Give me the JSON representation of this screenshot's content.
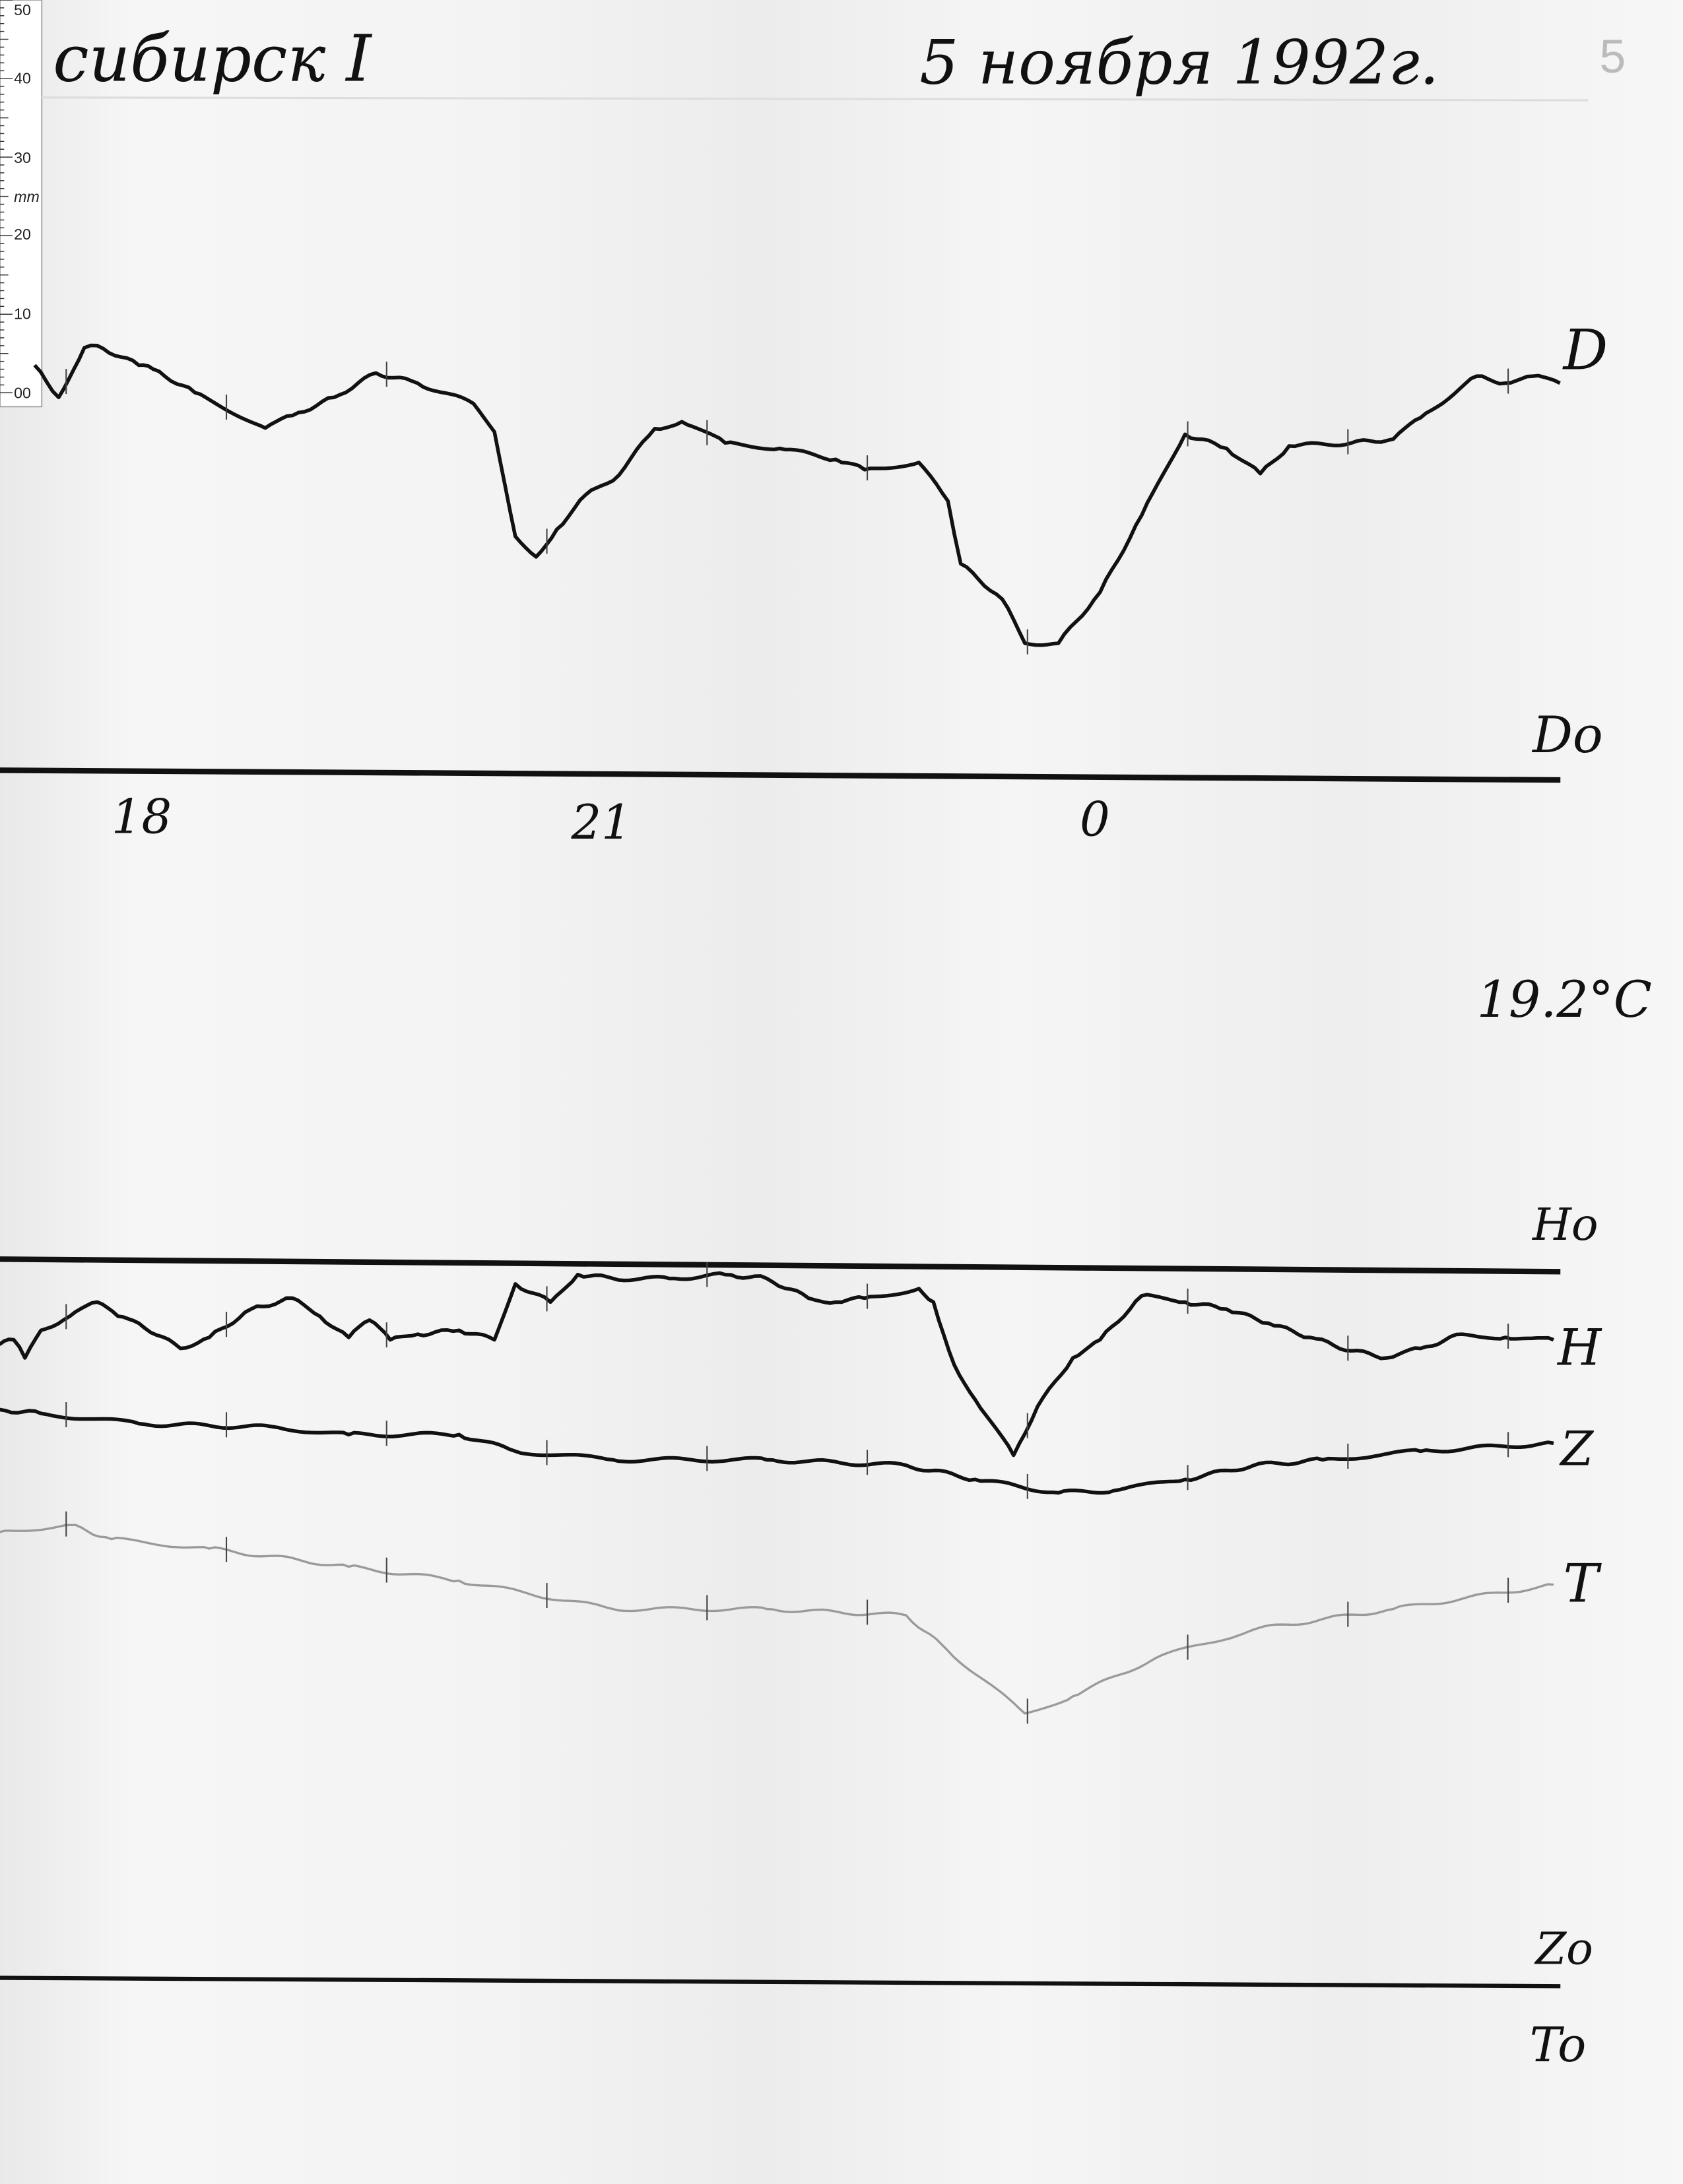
{
  "header": {
    "station": "сибирск I",
    "date": "5 ноября 1992г.",
    "page_number": "5"
  },
  "ruler": {
    "unit": "mm",
    "labels": [
      "50",
      "40",
      "30",
      "20",
      "10",
      "00"
    ]
  },
  "labels": {
    "D": "D",
    "D0": "Do",
    "temperature": "19.2°C",
    "H0": "Ho",
    "H": "H",
    "Z": "Z",
    "T": "T",
    "Z0": "Zo",
    "T0": "To"
  },
  "chart_data": {
    "type": "line",
    "title": "",
    "xlabel": "",
    "ylabel": "",
    "x_tick_labels": [
      "18",
      "21",
      "0"
    ],
    "x_unit": "hours (local time, wraps past midnight)",
    "y_unit": "mm deflection from own baseline",
    "grid": false,
    "colors": {
      "D": "#111111",
      "H": "#111111",
      "Z": "#111111",
      "T": "#9a9a9a"
    },
    "series": [
      {
        "name": "D",
        "baseline": "Do",
        "t": [
          17.39,
          17.54,
          17.7,
          17.78,
          18.04,
          18.13,
          18.39,
          18.83,
          19.0,
          19.26,
          19.52,
          19.78,
          20.13,
          20.26,
          20.39,
          20.52,
          20.65,
          20.83,
          21.0,
          21.26,
          21.43,
          21.7,
          22.04,
          22.39,
          22.57,
          22.91,
          23.09,
          23.17,
          23.43,
          23.57,
          23.78,
          0.04,
          0.3,
          0.57,
          0.83,
          1.04,
          1.22,
          1.61,
          1.87,
          2.04,
          2.39,
          2.57,
          2.74,
          2.91
        ],
        "y": [
          52.1,
          48.0,
          54.3,
          54.6,
          52.1,
          51.6,
          48.6,
          44.1,
          45.7,
          48.0,
          51.1,
          49.8,
          47.2,
          43.6,
          30.3,
          27.7,
          31.2,
          35.6,
          37.4,
          44.0,
          44.9,
          42.2,
          41.5,
          40.1,
          38.8,
          39.7,
          34.8,
          26.8,
          22.3,
          16.7,
          16.7,
          23.2,
          33.0,
          43.3,
          41.5,
          38.3,
          41.8,
          42.2,
          42.7,
          45.4,
          50.7,
          49.8,
          50.7,
          49.8
        ]
      },
      {
        "name": "H",
        "baseline": "Ho",
        "t": [
          17.17,
          17.26,
          17.33,
          17.43,
          17.61,
          17.78,
          17.91,
          18.04,
          18.3,
          18.48,
          18.74,
          19.0,
          19.17,
          19.35,
          19.48,
          19.61,
          19.78,
          20.04,
          20.26,
          20.39,
          20.61,
          20.78,
          21.0,
          21.35,
          21.7,
          21.96,
          22.22,
          22.39,
          22.57,
          22.91,
          23.0,
          23.13,
          23.26,
          23.5,
          23.65,
          23.87,
          0.04,
          0.3,
          0.57,
          0.83,
          1.09,
          1.35,
          1.61,
          1.83,
          2.04,
          2.3,
          2.57,
          2.87
        ],
        "y": [
          -9.8,
          -9.2,
          -11.5,
          -8.0,
          -6.2,
          -4.4,
          -6.2,
          -7.1,
          -10.3,
          -8.9,
          -5.3,
          -3.9,
          -6.2,
          -8.9,
          -6.7,
          -9.2,
          -8.5,
          -8.0,
          -9.2,
          -2.1,
          -4.4,
          -0.9,
          -1.4,
          -1.4,
          -0.9,
          -1.4,
          -3.9,
          -4.4,
          -3.9,
          -2.7,
          -4.4,
          -12.4,
          -16.8,
          -23.9,
          -17.7,
          -11.5,
          -9.2,
          -3.6,
          -4.4,
          -5.3,
          -7.1,
          -8.9,
          -10.6,
          -11.5,
          -10.3,
          -8.5,
          -8.9,
          -9.2
        ]
      },
      {
        "name": "Z",
        "baseline": "Zo",
        "t": [
          17.17,
          17.43,
          18.04,
          18.91,
          19.35,
          20.04,
          20.39,
          21.0,
          21.96,
          22.83,
          23.26,
          23.78,
          0.13,
          0.57,
          1.0,
          1.43,
          2.04,
          2.87
        ],
        "y": [
          72.7,
          72.2,
          70.9,
          70.4,
          69.5,
          69.5,
          67.4,
          66.3,
          66.3,
          65.6,
          63.8,
          62.1,
          62.4,
          63.8,
          65.6,
          66.3,
          67.4,
          68.4
        ]
      },
      {
        "name": "T",
        "baseline": "To",
        "t": [
          17.17,
          17.61,
          17.87,
          18.48,
          19.35,
          20.04,
          21.0,
          21.96,
          22.83,
          23.09,
          23.57,
          23.87,
          0.39,
          1.0,
          1.87,
          2.87
        ],
        "y": [
          57.1,
          58.0,
          56.2,
          55.0,
          52.7,
          50.9,
          47.3,
          47.3,
          46.5,
          42.0,
          34.0,
          36.2,
          41.1,
          44.7,
          47.3,
          50.4
        ]
      }
    ]
  }
}
